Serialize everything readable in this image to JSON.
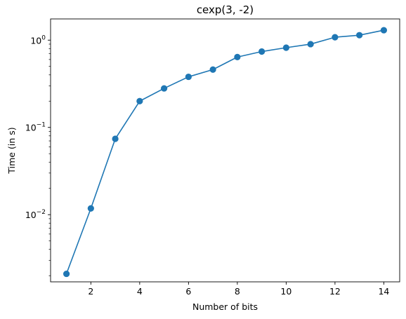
{
  "chart_data": {
    "type": "line",
    "title": "cexp(3, -2)",
    "xlabel": "Number of bits",
    "ylabel": "Time (in s)",
    "x_scale": "linear",
    "y_scale": "log",
    "xlim": [
      0.35,
      14.65
    ],
    "ylim": [
      0.0017,
      1.75
    ],
    "grid": false,
    "x_ticks": [
      {
        "value": 2,
        "label": "2"
      },
      {
        "value": 4,
        "label": "4"
      },
      {
        "value": 6,
        "label": "6"
      },
      {
        "value": 8,
        "label": "8"
      },
      {
        "value": 10,
        "label": "10"
      },
      {
        "value": 12,
        "label": "12"
      },
      {
        "value": 14,
        "label": "14"
      }
    ],
    "y_ticks": [
      {
        "value": 0.01,
        "base": "10",
        "exponent": "−2"
      },
      {
        "value": 0.1,
        "base": "10",
        "exponent": "−1"
      },
      {
        "value": 1,
        "base": "10",
        "exponent": "0"
      }
    ],
    "series": [
      {
        "color": "#1f77b4",
        "marker": "circle",
        "x": [
          1,
          2,
          3,
          4,
          5,
          6,
          7,
          8,
          9,
          10,
          11,
          12,
          13,
          14
        ],
        "y": [
          0.0021,
          0.0118,
          0.074,
          0.2,
          0.28,
          0.38,
          0.46,
          0.64,
          0.74,
          0.82,
          0.9,
          1.08,
          1.14,
          1.3
        ]
      }
    ]
  }
}
